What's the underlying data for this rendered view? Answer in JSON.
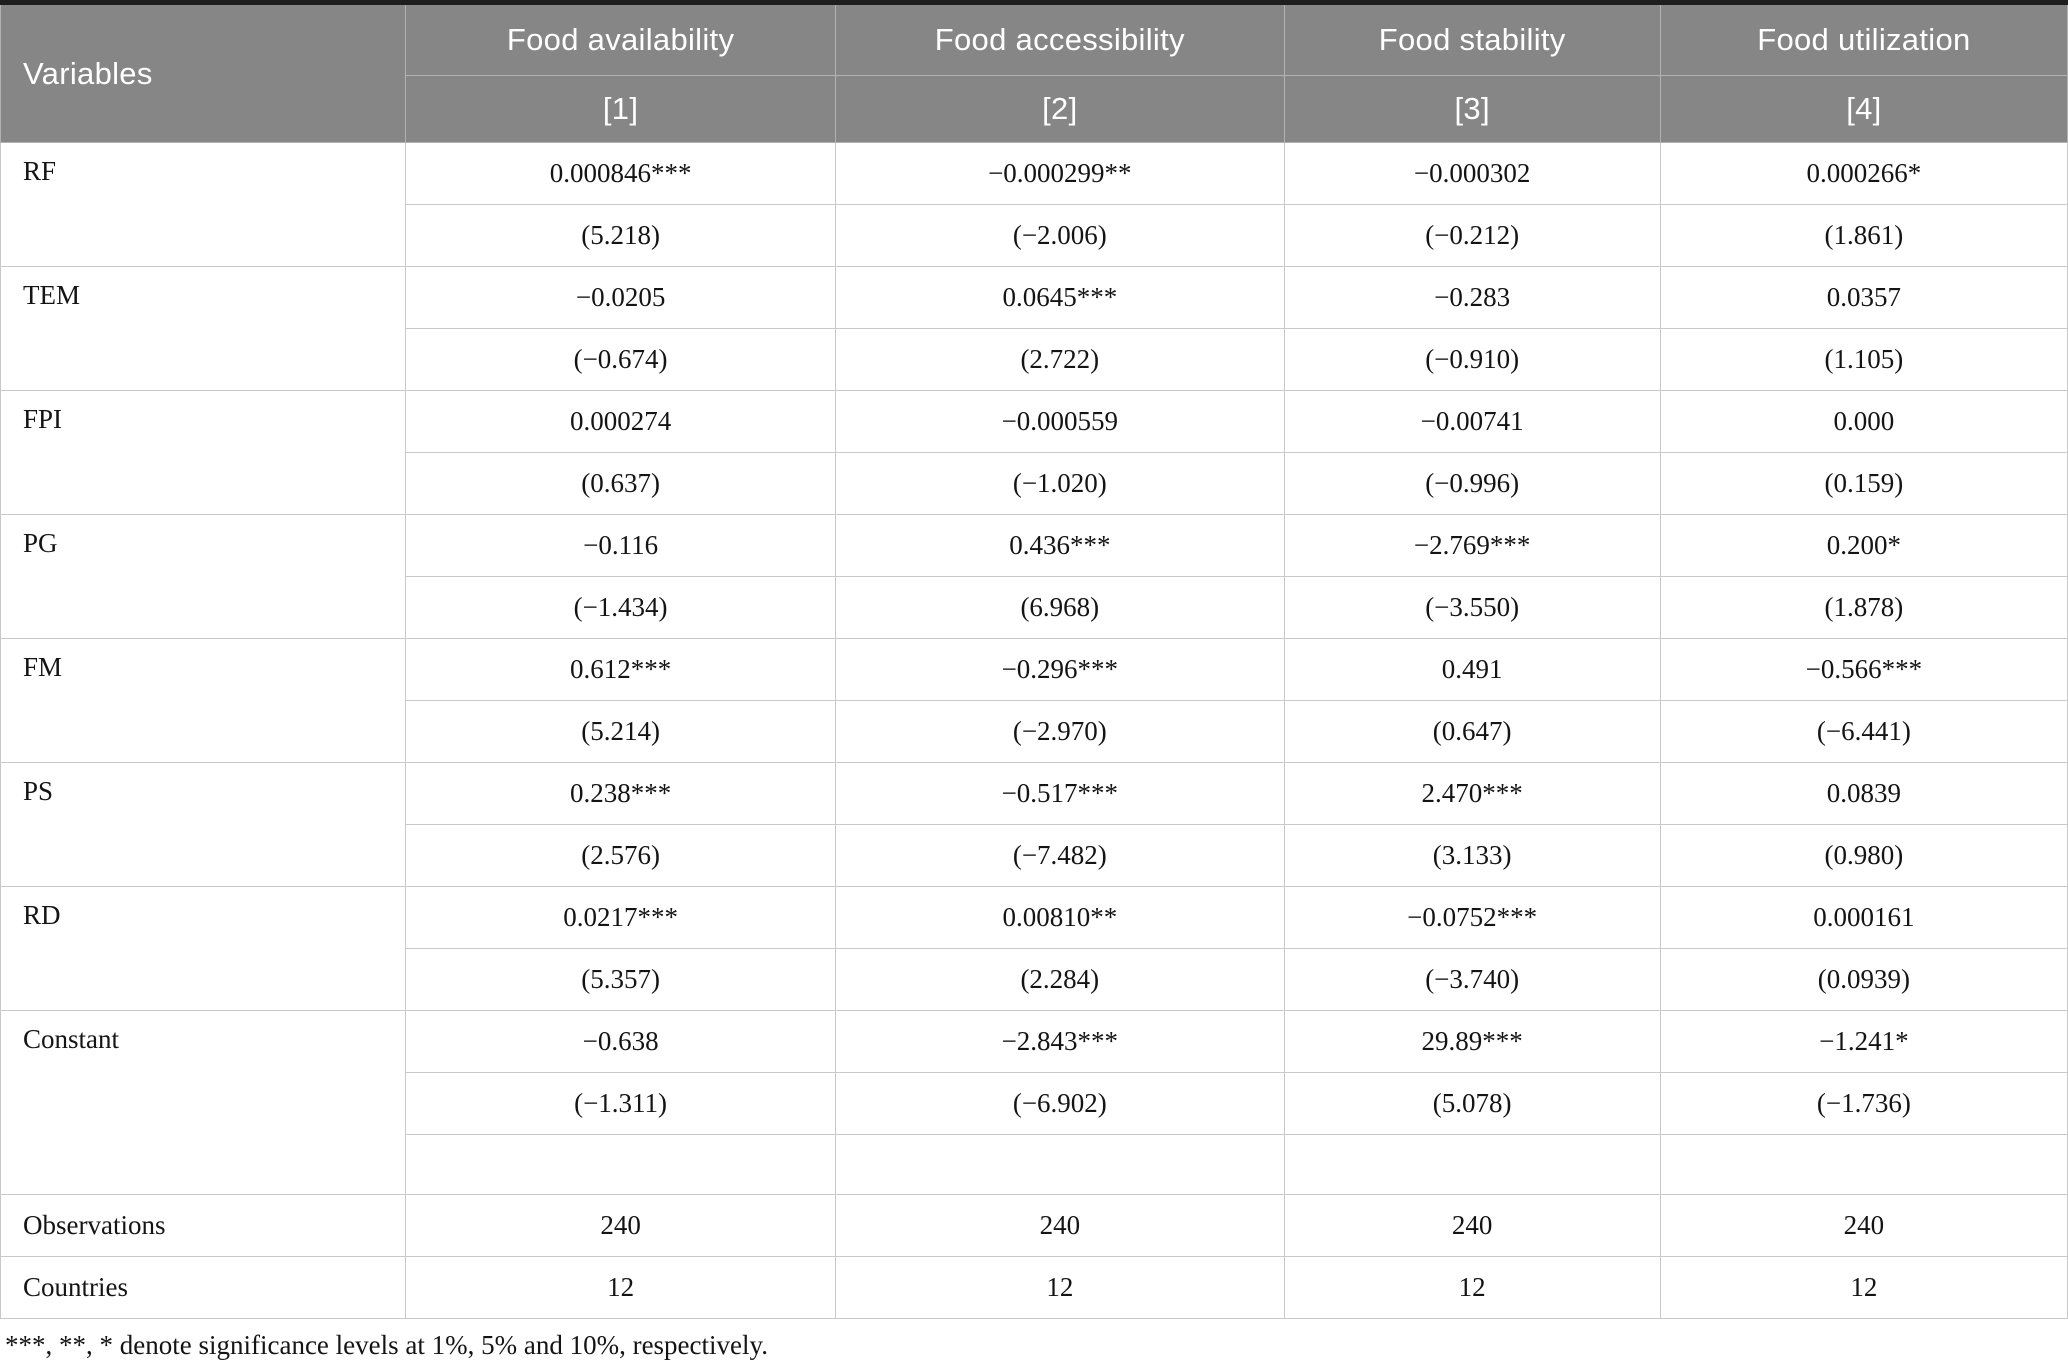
{
  "table": {
    "header": {
      "variables_label": "Variables",
      "columns": [
        {
          "label": "Food availability",
          "model": "[1]"
        },
        {
          "label": "Food accessibility",
          "model": "[2]"
        },
        {
          "label": "Food stability",
          "model": "[3]"
        },
        {
          "label": "Food utilization",
          "model": "[4]"
        }
      ]
    },
    "rows": [
      {
        "variable": "RF",
        "coefficients": [
          "0.000846***",
          "−0.000299**",
          "−0.000302",
          "0.000266*"
        ],
        "tstats": [
          "(5.218)",
          "(−2.006)",
          "(−0.212)",
          "(1.861)"
        ],
        "has_spacer": false
      },
      {
        "variable": "TEM",
        "coefficients": [
          "−0.0205",
          "0.0645***",
          "−0.283",
          "0.0357"
        ],
        "tstats": [
          "(−0.674)",
          "(2.722)",
          "(−0.910)",
          "(1.105)"
        ],
        "has_spacer": false
      },
      {
        "variable": "FPI",
        "coefficients": [
          "0.000274",
          "−0.000559",
          "−0.00741",
          "0.000"
        ],
        "tstats": [
          "(0.637)",
          "(−1.020)",
          "(−0.996)",
          "(0.159)"
        ],
        "has_spacer": false
      },
      {
        "variable": "PG",
        "coefficients": [
          "−0.116",
          "0.436***",
          "−2.769***",
          "0.200*"
        ],
        "tstats": [
          "(−1.434)",
          "(6.968)",
          "(−3.550)",
          "(1.878)"
        ],
        "has_spacer": false
      },
      {
        "variable": "FM",
        "coefficients": [
          "0.612***",
          "−0.296***",
          "0.491",
          "−0.566***"
        ],
        "tstats": [
          "(5.214)",
          "(−2.970)",
          "(0.647)",
          "(−6.441)"
        ],
        "has_spacer": false
      },
      {
        "variable": "PS",
        "coefficients": [
          "0.238***",
          "−0.517***",
          "2.470***",
          "0.0839"
        ],
        "tstats": [
          "(2.576)",
          "(−7.482)",
          "(3.133)",
          "(0.980)"
        ],
        "has_spacer": false
      },
      {
        "variable": "RD",
        "coefficients": [
          "0.0217***",
          "0.00810**",
          "−0.0752***",
          "0.000161"
        ],
        "tstats": [
          "(5.357)",
          "(2.284)",
          "(−3.740)",
          "(0.0939)"
        ],
        "has_spacer": false
      },
      {
        "variable": "Constant",
        "coefficients": [
          "−0.638",
          "−2.843***",
          "29.89***",
          "−1.241*"
        ],
        "tstats": [
          "(−1.311)",
          "(−6.902)",
          "(5.078)",
          "(−1.736)"
        ],
        "has_spacer": true
      }
    ],
    "summary_rows": [
      {
        "label": "Observations",
        "values": [
          "240",
          "240",
          "240",
          "240"
        ]
      },
      {
        "label": "Countries",
        "values": [
          "12",
          "12",
          "12",
          "12"
        ]
      }
    ],
    "footnote": "***, **, * denote significance levels at 1%, 5% and 10%, respectively."
  },
  "colors": {
    "header_bg": "#868686",
    "header_text": "#ffffff",
    "body_text": "#141414",
    "grid_line": "#c9c9c9",
    "top_bar": "#1e1e1e"
  }
}
